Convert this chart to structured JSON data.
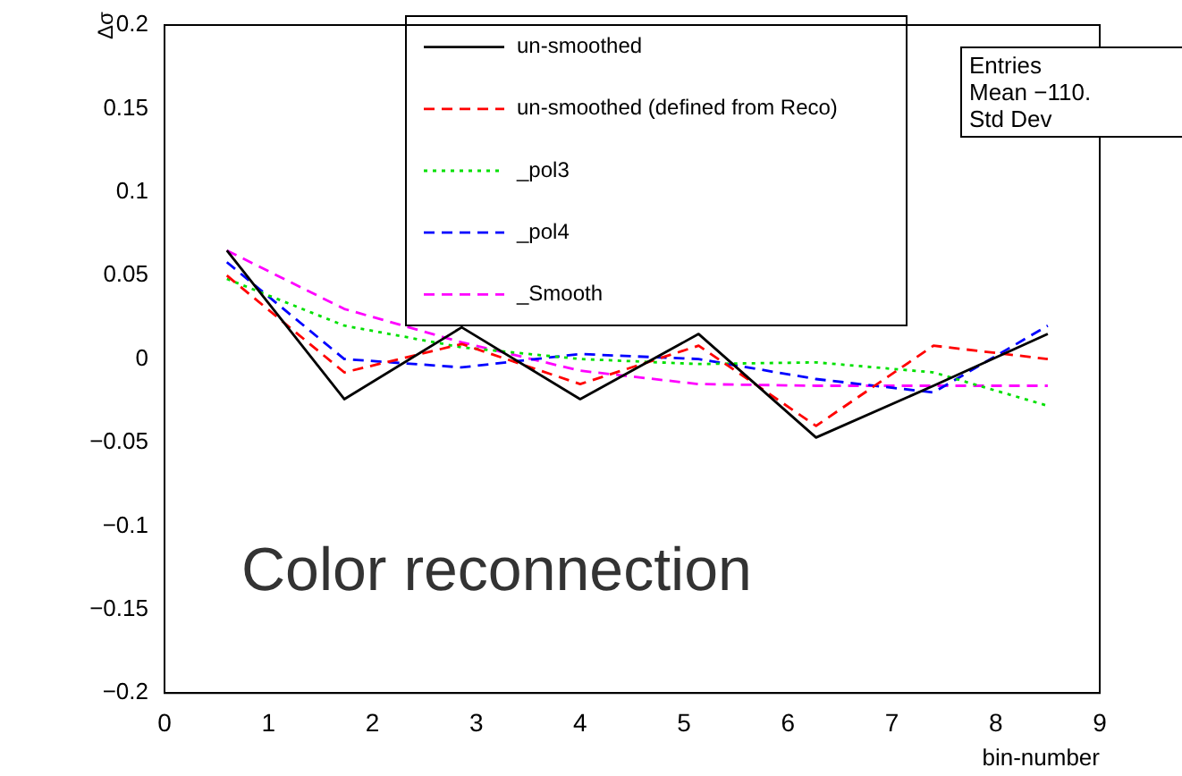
{
  "chart_data": {
    "type": "line",
    "ylabel": "Δσ",
    "xlabel": "bin-number",
    "x": [
      0.6,
      1.73,
      2.86,
      4.0,
      5.14,
      6.27,
      7.4,
      8.5
    ],
    "series": [
      {
        "name": "un-smoothed",
        "color": "#000000",
        "line_style": "solid",
        "values": [
          0.065,
          -0.024,
          0.019,
          -0.024,
          0.015,
          -0.047,
          -0.016,
          0.015
        ]
      },
      {
        "name": "un-smoothed (defined from Reco)",
        "color": "#ff0000",
        "line_style": "dashed",
        "values": [
          0.05,
          -0.008,
          0.009,
          -0.015,
          0.008,
          -0.04,
          0.008,
          0.0
        ]
      },
      {
        "name": "_pol3",
        "color": "#00e000",
        "line_style": "dotted",
        "values": [
          0.048,
          0.02,
          0.007,
          0.0,
          -0.003,
          -0.002,
          -0.008,
          -0.028
        ]
      },
      {
        "name": "_pol4",
        "color": "#0000ff",
        "line_style": "dashed",
        "values": [
          0.058,
          0.0,
          -0.005,
          0.003,
          0.0,
          -0.012,
          -0.02,
          0.02
        ]
      },
      {
        "name": "_Smooth",
        "color": "#ff00ff",
        "line_style": "dashed",
        "values": [
          0.065,
          0.03,
          0.01,
          -0.007,
          -0.015,
          -0.016,
          -0.016,
          -0.016
        ]
      }
    ],
    "xlim": [
      0,
      9
    ],
    "xticks": [
      0,
      1,
      2,
      3,
      4,
      5,
      6,
      7,
      8,
      9
    ],
    "ylim": [
      -0.2,
      0.2
    ],
    "yticks": [
      {
        "value": -0.2,
        "label": "−0.2"
      },
      {
        "value": -0.15,
        "label": "−0.15"
      },
      {
        "value": -0.1,
        "label": "−0.1"
      },
      {
        "value": -0.05,
        "label": "−0.05"
      },
      0,
      0.05,
      0.1,
      0.15,
      0.2
    ],
    "marker": "none",
    "grid": false,
    "legend": "top",
    "annotations": [
      "Color reconnection",
      "Entries",
      "Mean    −110.",
      "Std Dev"
    ]
  }
}
